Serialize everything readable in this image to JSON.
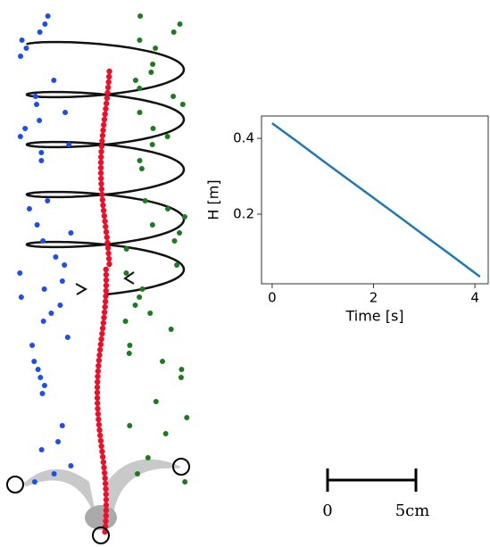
{
  "chart_data": {
    "type": "line",
    "xlabel": "Time [s]",
    "ylabel": "H [m]",
    "x": [
      0,
      0.5,
      1,
      1.5,
      2,
      2.5,
      3,
      3.5,
      4.1
    ],
    "series": [
      {
        "color": "#1f77b4",
        "values": [
          0.44,
          0.391,
          0.341,
          0.292,
          0.243,
          0.194,
          0.144,
          0.095,
          0.035
        ]
      }
    ],
    "xlim": [
      -0.21,
      4.28
    ],
    "ylim": [
      0.0165,
      0.459
    ],
    "xticks": [
      0,
      2,
      4
    ],
    "yticks": [
      0.2,
      0.4
    ]
  },
  "scale_bar": {
    "labels": [
      "0",
      "5cm"
    ]
  }
}
